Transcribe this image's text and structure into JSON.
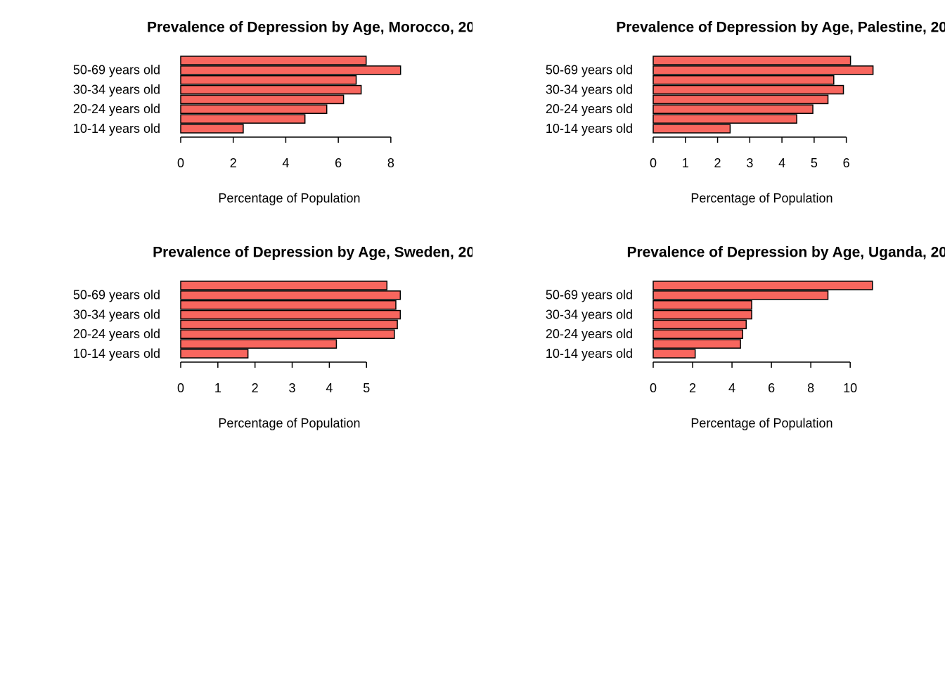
{
  "chart_data": [
    {
      "type": "bar",
      "title": "Prevalence of Depression by Age, Morocco, 20",
      "xlabel": "Percentage of Population",
      "color": "#f8665e",
      "categories": [
        "10-14 years old",
        null,
        "20-24 years old",
        null,
        "30-34 years old",
        null,
        "50-69 years old",
        null
      ],
      "values": [
        2.38,
        4.73,
        5.56,
        6.2,
        6.87,
        6.68,
        8.37,
        7.06
      ],
      "xlim": [
        0,
        8.7
      ],
      "xticks": [
        0,
        2,
        4,
        6,
        8
      ]
    },
    {
      "type": "bar",
      "title": "Prevalence of Depression by Age, Palestine, 20",
      "xlabel": "Percentage of Population",
      "color": "#f8665e",
      "categories": [
        "10-14 years old",
        null,
        "20-24 years old",
        null,
        "30-34 years old",
        null,
        "50-69 years old",
        null
      ],
      "values": [
        2.39,
        4.46,
        4.96,
        5.43,
        5.91,
        5.61,
        6.83,
        6.13
      ],
      "xlim": [
        0,
        7.1
      ],
      "xticks": [
        0,
        1,
        2,
        3,
        4,
        5,
        6
      ]
    },
    {
      "type": "bar",
      "title": "Prevalence of Depression by Age, Sweden, 20",
      "xlabel": "Percentage of Population",
      "color": "#f8665e",
      "categories": [
        "10-14 years old",
        null,
        "20-24 years old",
        null,
        "30-34 years old",
        null,
        "50-69 years old",
        null
      ],
      "values": [
        1.81,
        4.19,
        5.75,
        5.83,
        5.91,
        5.79,
        5.91,
        5.55
      ],
      "xlim": [
        0,
        6.15
      ],
      "xticks": [
        0,
        1,
        2,
        3,
        4,
        5
      ]
    },
    {
      "type": "bar",
      "title": "Prevalence of Depression by Age, Uganda, 20",
      "xlabel": "Percentage of Population",
      "color": "#f8665e",
      "categories": [
        "10-14 years old",
        null,
        "20-24 years old",
        null,
        "30-34 years old",
        null,
        "50-69 years old",
        null
      ],
      "values": [
        2.13,
        4.43,
        4.54,
        4.72,
        5.0,
        5.0,
        8.87,
        11.13
      ],
      "xlim": [
        0,
        11.6
      ],
      "xticks": [
        0,
        2,
        4,
        6,
        8,
        10
      ]
    }
  ]
}
